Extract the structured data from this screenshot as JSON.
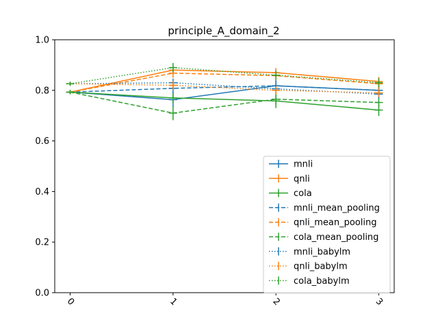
{
  "chart_data": {
    "type": "line",
    "title": "principle_A_domain_2",
    "xlabel": "",
    "ylabel": "",
    "x": [
      0,
      1,
      2,
      3
    ],
    "x_tick_labels": [
      "0",
      "1",
      "2",
      "3"
    ],
    "y_tick_labels": [
      "0.0",
      "0.2",
      "0.4",
      "0.6",
      "0.8",
      "1.0"
    ],
    "ylim": [
      0.0,
      1.0
    ],
    "grid": false,
    "legend_position": "lower-right",
    "series": [
      {
        "name": "mnli",
        "color": "#1f77b4",
        "style": "solid",
        "values": [
          0.793,
          0.763,
          0.818,
          0.8
        ],
        "errors": [
          0.0,
          0.02,
          0.015,
          0.012
        ]
      },
      {
        "name": "qnli",
        "color": "#ff7f0e",
        "style": "solid",
        "values": [
          0.793,
          0.88,
          0.87,
          0.835
        ],
        "errors": [
          0.0,
          0.01,
          0.01,
          0.01
        ]
      },
      {
        "name": "cola",
        "color": "#2ca02c",
        "style": "solid",
        "values": [
          0.793,
          0.77,
          0.758,
          0.722
        ],
        "errors": [
          0.0,
          0.012,
          0.02,
          0.015
        ]
      },
      {
        "name": "mnli_mean_pooling",
        "color": "#1f77b4",
        "style": "dashed",
        "values": [
          0.793,
          0.808,
          0.818,
          0.8
        ],
        "errors": [
          0.0,
          0.012,
          0.012,
          0.01
        ]
      },
      {
        "name": "qnli_mean_pooling",
        "color": "#ff7f0e",
        "style": "dashed",
        "values": [
          0.793,
          0.868,
          0.858,
          0.826
        ],
        "errors": [
          0.0,
          0.01,
          0.01,
          0.01
        ]
      },
      {
        "name": "cola_mean_pooling",
        "color": "#2ca02c",
        "style": "dashed",
        "values": [
          0.793,
          0.71,
          0.765,
          0.752
        ],
        "errors": [
          0.0,
          0.02,
          0.012,
          0.01
        ]
      },
      {
        "name": "mnli_babylm",
        "color": "#1f77b4",
        "style": "dotted",
        "values": [
          0.826,
          0.83,
          0.806,
          0.785
        ],
        "errors": [
          0.0,
          0.008,
          0.01,
          0.01
        ]
      },
      {
        "name": "qnli_babylm",
        "color": "#ff7f0e",
        "style": "dotted",
        "values": [
          0.826,
          0.82,
          0.8,
          0.79
        ],
        "errors": [
          0.0,
          0.008,
          0.008,
          0.008
        ]
      },
      {
        "name": "cola_babylm",
        "color": "#2ca02c",
        "style": "dotted",
        "values": [
          0.826,
          0.89,
          0.86,
          0.83
        ],
        "errors": [
          0.0,
          0.01,
          0.01,
          0.01
        ]
      }
    ]
  }
}
